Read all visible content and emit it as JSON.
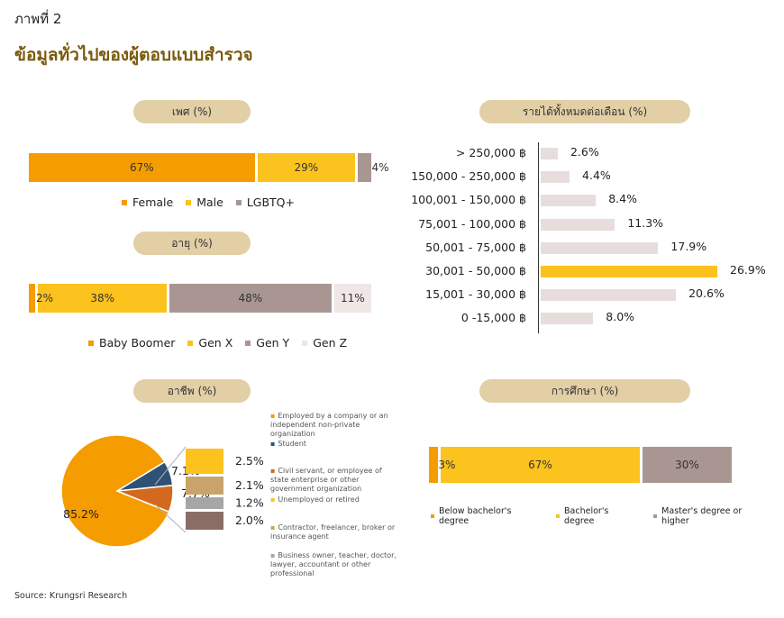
{
  "figure_label": "ภาพที่ 2",
  "figure_title": "ข้อมูลทั่วไปของผู้ตอบแบบสำรวจ",
  "source": "Source: Krungsri Research",
  "colors": {
    "orange": "#f59c00",
    "yellow": "#fcc21d",
    "taupe": "#a99693",
    "light": "#efe6e6",
    "pill": "#e2cfa6",
    "title": "#7a5a0c"
  },
  "chart_data": [
    {
      "type": "bar",
      "orientation": "stacked-horizontal",
      "title": "เพศ (%)",
      "series": [
        {
          "name": "Female",
          "value": 67,
          "label": "67%",
          "color": "#f59c00"
        },
        {
          "name": "Male",
          "value": 29,
          "label": "29%",
          "color": "#fcc21d"
        },
        {
          "name": "LGBTQ+",
          "value": 4,
          "label": "4%",
          "color": "#a99693"
        }
      ]
    },
    {
      "type": "bar",
      "orientation": "stacked-horizontal",
      "title": "อายุ (%)",
      "series": [
        {
          "name": "Baby Boomer",
          "value": 2,
          "label": "2%",
          "color": "#f59c00"
        },
        {
          "name": "Gen X",
          "value": 38,
          "label": "38%",
          "color": "#fcc21d"
        },
        {
          "name": "Gen Y",
          "value": 48,
          "label": "48%",
          "color": "#a99693"
        },
        {
          "name": "Gen Z",
          "value": 11,
          "label": "11%",
          "color": "#efe6e6"
        }
      ]
    },
    {
      "type": "pie",
      "title": "อาชีพ (%)",
      "slices": [
        {
          "name": "Employed by a company or an independent non-private organization",
          "value": 85.2,
          "label": "85.2%",
          "color": "#f59c00"
        },
        {
          "name": "Student",
          "value": 7.1,
          "label": "7.1%",
          "color": "#2f5173"
        },
        {
          "name": "Civil servant, or employee of state enterprise or other government organization",
          "value": 7.7,
          "label": "7.7%",
          "color": "#d2691e"
        }
      ],
      "breakdown": [
        {
          "name": "Unemployed or retired",
          "value": 2.5,
          "label": "2.5%",
          "color": "#fcc21d"
        },
        {
          "name": "Contractor, freelancer, broker or insurance agent",
          "value": 2.1,
          "label": "2.1%",
          "color": "#c9a46a"
        },
        {
          "name": "Business owner, teacher, doctor, lawyer, accountant or other professional",
          "value": 1.2,
          "label": "1.2%",
          "color": "#a6a6a6"
        },
        {
          "name": "",
          "value": 2.0,
          "label": "2.0%",
          "color": "#8a6e66"
        }
      ]
    },
    {
      "type": "bar",
      "orientation": "horizontal",
      "title": "รายได้ทั้งหมดต่อเดือน (%)",
      "categories": [
        "> 250,000 ฿",
        "150,000 - 250,000 ฿",
        "100,001 - 150,000 ฿",
        "75,001 - 100,000 ฿",
        "50,001 - 75,000 ฿",
        "30,001 - 50,000 ฿",
        "15,001 - 30,000 ฿",
        "0 -15,000 ฿"
      ],
      "values": [
        2.6,
        4.4,
        8.4,
        11.3,
        17.9,
        26.9,
        20.6,
        8.0
      ],
      "labels": [
        "2.6%",
        "4.4%",
        "8.4%",
        "11.3%",
        "17.9%",
        "26.9%",
        "20.6%",
        "8.0%"
      ],
      "highlight_index": 5,
      "xlim": [
        0,
        26.9
      ]
    },
    {
      "type": "bar",
      "orientation": "stacked-horizontal",
      "title": "การศึกษา (%)",
      "series": [
        {
          "name": "Below bachelor's degree",
          "value": 3,
          "label": "3%",
          "color": "#f59c00"
        },
        {
          "name": "Bachelor's degree",
          "value": 67,
          "label": "67%",
          "color": "#fcc21d"
        },
        {
          "name": "Master's degree or higher",
          "value": 30,
          "label": "30%",
          "color": "#a99693"
        }
      ]
    }
  ]
}
